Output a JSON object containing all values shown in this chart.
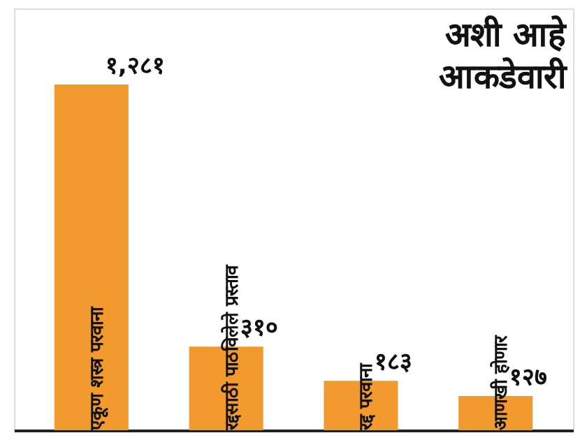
{
  "chart_data": {
    "type": "bar",
    "title": "अशी आहे आकडेवारी",
    "categories": [
      "एकूण शस्त्र परवाना",
      "रद्दसाठी पाठविलेले प्रस्ताव",
      "रद्द परवाना",
      "आणखी होणार"
    ],
    "values": [
      1281,
      310,
      183,
      127
    ],
    "value_labels": [
      "१,२८१",
      "३१०",
      "१८३",
      "१२७"
    ],
    "color": "#f39a2e"
  }
}
